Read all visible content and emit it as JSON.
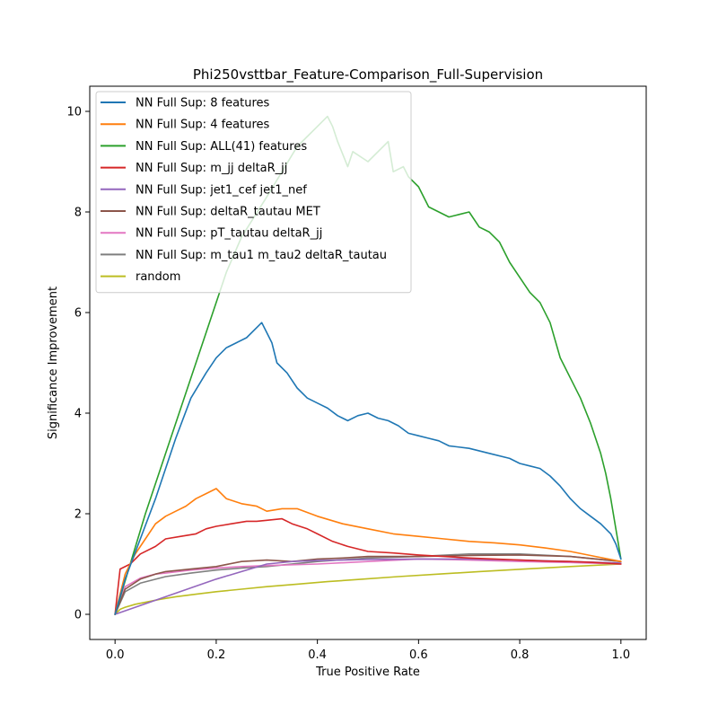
{
  "chart_data": {
    "type": "line",
    "title": "Phi250vsttbar_Feature-Comparison_Full-Supervision",
    "xlabel": "True Positive Rate",
    "ylabel": "Significance Improvement",
    "xlim": [
      -0.05,
      1.05
    ],
    "ylim": [
      -0.5,
      10.5
    ],
    "xticks": [
      0.0,
      0.2,
      0.4,
      0.6,
      0.8,
      1.0
    ],
    "xtick_labels": [
      "0.0",
      "0.2",
      "0.4",
      "0.6",
      "0.8",
      "1.0"
    ],
    "yticks": [
      0,
      2,
      4,
      6,
      8,
      10
    ],
    "ytick_labels": [
      "0",
      "2",
      "4",
      "6",
      "8",
      "10"
    ],
    "grid": false,
    "legend_position": "top-left",
    "series": [
      {
        "name": "NN Full Sup: 8 features",
        "color": "#1f77b4",
        "x": [
          0.0,
          0.02,
          0.05,
          0.08,
          0.1,
          0.12,
          0.15,
          0.18,
          0.2,
          0.22,
          0.24,
          0.26,
          0.28,
          0.29,
          0.3,
          0.31,
          0.32,
          0.34,
          0.36,
          0.38,
          0.4,
          0.42,
          0.44,
          0.46,
          0.48,
          0.5,
          0.52,
          0.54,
          0.56,
          0.58,
          0.6,
          0.62,
          0.64,
          0.66,
          0.7,
          0.74,
          0.78,
          0.8,
          0.82,
          0.84,
          0.86,
          0.88,
          0.9,
          0.92,
          0.94,
          0.96,
          0.98,
          0.99,
          1.0
        ],
        "y": [
          0.0,
          0.7,
          1.5,
          2.3,
          2.9,
          3.5,
          4.3,
          4.8,
          5.1,
          5.3,
          5.4,
          5.5,
          5.7,
          5.8,
          5.6,
          5.4,
          5.0,
          4.8,
          4.5,
          4.3,
          4.2,
          4.1,
          3.95,
          3.85,
          3.95,
          4.0,
          3.9,
          3.85,
          3.75,
          3.6,
          3.55,
          3.5,
          3.45,
          3.35,
          3.3,
          3.2,
          3.1,
          3.0,
          2.95,
          2.9,
          2.75,
          2.55,
          2.3,
          2.1,
          1.95,
          1.8,
          1.6,
          1.4,
          1.1
        ]
      },
      {
        "name": "NN Full Sup: 4 features",
        "color": "#ff7f0e",
        "x": [
          0.0,
          0.02,
          0.04,
          0.06,
          0.08,
          0.1,
          0.12,
          0.14,
          0.16,
          0.18,
          0.2,
          0.22,
          0.25,
          0.28,
          0.3,
          0.33,
          0.36,
          0.4,
          0.45,
          0.5,
          0.55,
          0.6,
          0.65,
          0.7,
          0.75,
          0.8,
          0.85,
          0.9,
          0.95,
          1.0
        ],
        "y": [
          0.0,
          0.8,
          1.2,
          1.5,
          1.8,
          1.95,
          2.05,
          2.15,
          2.3,
          2.4,
          2.5,
          2.3,
          2.2,
          2.15,
          2.05,
          2.1,
          2.1,
          1.95,
          1.8,
          1.7,
          1.6,
          1.55,
          1.5,
          1.45,
          1.42,
          1.38,
          1.32,
          1.25,
          1.15,
          1.05
        ]
      },
      {
        "name": "NN Full Sup: ALL(41) features",
        "color": "#2ca02c",
        "x": [
          0.0,
          0.03,
          0.06,
          0.1,
          0.15,
          0.2,
          0.22,
          0.25,
          0.3,
          0.33,
          0.36,
          0.38,
          0.4,
          0.42,
          0.43,
          0.44,
          0.46,
          0.47,
          0.5,
          0.53,
          0.54,
          0.55,
          0.57,
          0.58,
          0.6,
          0.62,
          0.64,
          0.66,
          0.68,
          0.7,
          0.72,
          0.74,
          0.76,
          0.78,
          0.8,
          0.82,
          0.84,
          0.86,
          0.88,
          0.9,
          0.92,
          0.94,
          0.96,
          0.97,
          0.98,
          0.99,
          1.0
        ],
        "y": [
          0.0,
          1.0,
          2.0,
          3.2,
          4.7,
          6.2,
          6.8,
          7.5,
          8.3,
          8.8,
          9.3,
          9.5,
          9.7,
          9.9,
          9.7,
          9.4,
          8.9,
          9.2,
          9.0,
          9.3,
          9.4,
          8.8,
          8.9,
          8.7,
          8.5,
          8.1,
          8.0,
          7.9,
          7.95,
          8.0,
          7.7,
          7.6,
          7.4,
          7.0,
          6.7,
          6.4,
          6.2,
          5.8,
          5.1,
          4.7,
          4.3,
          3.8,
          3.2,
          2.8,
          2.3,
          1.7,
          1.1
        ]
      },
      {
        "name": "NN Full Sup: m_jj deltaR_jj",
        "color": "#d62728",
        "x": [
          0.0,
          0.01,
          0.03,
          0.05,
          0.08,
          0.1,
          0.13,
          0.16,
          0.18,
          0.2,
          0.23,
          0.26,
          0.28,
          0.3,
          0.33,
          0.35,
          0.38,
          0.4,
          0.43,
          0.46,
          0.5,
          0.55,
          0.6,
          0.65,
          0.7,
          0.75,
          0.8,
          0.85,
          0.9,
          0.95,
          1.0
        ],
        "y": [
          0.0,
          0.9,
          1.0,
          1.2,
          1.35,
          1.5,
          1.55,
          1.6,
          1.7,
          1.75,
          1.8,
          1.85,
          1.85,
          1.87,
          1.9,
          1.8,
          1.7,
          1.6,
          1.45,
          1.35,
          1.25,
          1.22,
          1.18,
          1.15,
          1.12,
          1.1,
          1.08,
          1.06,
          1.05,
          1.03,
          1.0
        ]
      },
      {
        "name": "NN Full Sup: jet1_cef jet1_nef",
        "color": "#9467bd",
        "x": [
          0.0,
          0.1,
          0.2,
          0.3,
          0.35,
          0.4,
          0.5,
          0.6,
          0.7,
          0.8,
          0.9,
          1.0
        ],
        "y": [
          0.0,
          0.35,
          0.7,
          1.0,
          1.05,
          1.07,
          1.09,
          1.1,
          1.1,
          1.08,
          1.05,
          1.02
        ]
      },
      {
        "name": "NN Full Sup: deltaR_tautau MET",
        "color": "#8c564b",
        "x": [
          0.0,
          0.02,
          0.05,
          0.08,
          0.1,
          0.15,
          0.2,
          0.25,
          0.3,
          0.35,
          0.4,
          0.45,
          0.5,
          0.6,
          0.7,
          0.8,
          0.9,
          1.0
        ],
        "y": [
          0.0,
          0.5,
          0.7,
          0.8,
          0.85,
          0.9,
          0.95,
          1.05,
          1.08,
          1.05,
          1.1,
          1.12,
          1.15,
          1.15,
          1.17,
          1.18,
          1.15,
          1.05
        ]
      },
      {
        "name": "NN Full Sup: pT_tautau deltaR_jj",
        "color": "#e377c2",
        "x": [
          0.0,
          0.02,
          0.05,
          0.08,
          0.1,
          0.15,
          0.2,
          0.25,
          0.3,
          0.4,
          0.5,
          0.6,
          0.7,
          0.8,
          0.9,
          1.0
        ],
        "y": [
          0.0,
          0.55,
          0.72,
          0.8,
          0.82,
          0.88,
          0.92,
          0.95,
          0.97,
          1.0,
          1.05,
          1.1,
          1.08,
          1.05,
          1.03,
          1.0
        ]
      },
      {
        "name": "NN Full Sup: m_tau1 m_tau2 deltaR_tautau",
        "color": "#7f7f7f",
        "x": [
          0.0,
          0.02,
          0.05,
          0.1,
          0.15,
          0.2,
          0.25,
          0.3,
          0.4,
          0.5,
          0.6,
          0.7,
          0.8,
          0.9,
          1.0
        ],
        "y": [
          0.0,
          0.45,
          0.62,
          0.75,
          0.82,
          0.88,
          0.92,
          0.95,
          1.05,
          1.12,
          1.15,
          1.2,
          1.2,
          1.15,
          1.05
        ]
      },
      {
        "name": "random",
        "color": "#bcbd22",
        "x": [
          0.0,
          0.01,
          0.02,
          0.04,
          0.06,
          0.09,
          0.12,
          0.16,
          0.2,
          0.25,
          0.3,
          0.36,
          0.42,
          0.49,
          0.56,
          0.64,
          0.72,
          0.81,
          0.9,
          1.0
        ],
        "y": [
          0.0,
          0.1,
          0.14,
          0.2,
          0.24,
          0.3,
          0.35,
          0.4,
          0.45,
          0.5,
          0.55,
          0.6,
          0.65,
          0.7,
          0.75,
          0.8,
          0.85,
          0.9,
          0.95,
          1.0
        ]
      }
    ]
  }
}
